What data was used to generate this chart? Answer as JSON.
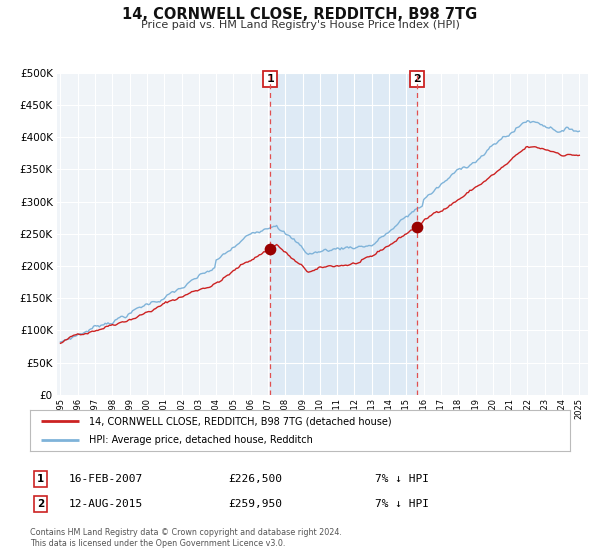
{
  "title": "14, CORNWELL CLOSE, REDDITCH, B98 7TG",
  "subtitle": "Price paid vs. HM Land Registry's House Price Index (HPI)",
  "background_color": "#ffffff",
  "plot_bg_color": "#f0f4f8",
  "grid_color": "#ffffff",
  "hpi_color": "#7fb3d9",
  "price_color": "#cc2222",
  "marker_color": "#990000",
  "shaded_region_color": "#deeaf5",
  "transaction1": {
    "date_num": 2007.12,
    "price": 226500,
    "label": "1",
    "date_str": "16-FEB-2007",
    "hpi_diff": "7% ↓ HPI"
  },
  "transaction2": {
    "date_num": 2015.62,
    "price": 259950,
    "label": "2",
    "date_str": "12-AUG-2015",
    "hpi_diff": "7% ↓ HPI"
  },
  "legend_line1": "14, CORNWELL CLOSE, REDDITCH, B98 7TG (detached house)",
  "legend_line2": "HPI: Average price, detached house, Redditch",
  "footer1": "Contains HM Land Registry data © Crown copyright and database right 2024.",
  "footer2": "This data is licensed under the Open Government Licence v3.0.",
  "ylim": [
    0,
    500000
  ],
  "yticks": [
    0,
    50000,
    100000,
    150000,
    200000,
    250000,
    300000,
    350000,
    400000,
    450000,
    500000
  ],
  "xlim_start": 1994.8,
  "xlim_end": 2025.5,
  "xticks": [
    1995,
    1996,
    1997,
    1998,
    1999,
    2000,
    2001,
    2002,
    2003,
    2004,
    2005,
    2006,
    2007,
    2008,
    2009,
    2010,
    2011,
    2012,
    2013,
    2014,
    2015,
    2016,
    2017,
    2018,
    2019,
    2020,
    2021,
    2022,
    2023,
    2024,
    2025
  ]
}
